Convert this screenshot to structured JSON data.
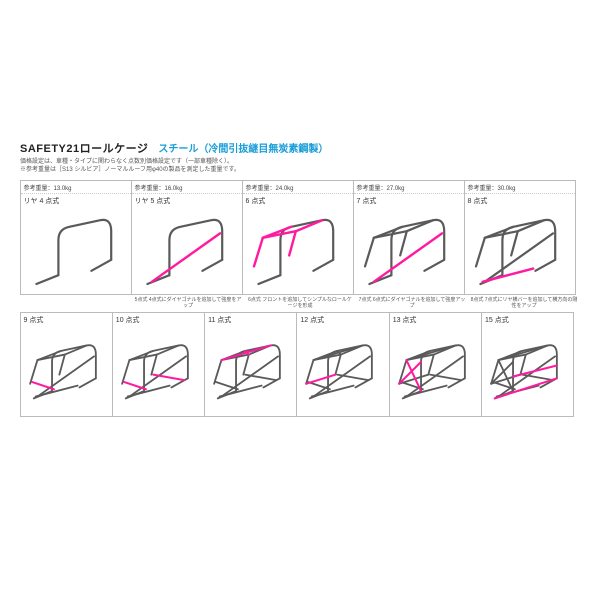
{
  "header": {
    "title_main": "SAFETY21ロールケージ",
    "title_sub": "スチール（冷間引抜継目無炭素鋼製）",
    "line1": "価格設定は、車種・タイプに関わらなく点数別価格設定です（一部車種除く）。",
    "line2": "※参考重量は［S13 シルビア］ノーマルルーフ用φ40の製品を測定した重量です。"
  },
  "colors": {
    "main_bar": "#5a5a5a",
    "accent_bar": "#ff1a9f",
    "border": "#bbbbbb",
    "accent_stroke_width": 2.2,
    "main_stroke_width": 2.0
  },
  "row1": [
    {
      "weight": "参考重量：13.0kg",
      "label": "リヤ 4 点式",
      "type": "rear4",
      "caption": ""
    },
    {
      "weight": "参考重量：16.0kg",
      "label": "リヤ 5 点式",
      "type": "rear5",
      "caption": "5点式 4点式にダイヤゴナルを追加して強度をアップ"
    },
    {
      "weight": "参考重量：24.0kg",
      "label": "6 点式",
      "type": "p6",
      "caption": "6点式 フロントを追加してシンプルなロールケージを形成"
    },
    {
      "weight": "参考重量：27.0kg",
      "label": "7 点式",
      "type": "p7",
      "caption": "7点式 6点式にダイヤゴナルを追加して強度アップ"
    },
    {
      "weight": "参考重量：30.0kg",
      "label": "8 点式",
      "type": "p8",
      "caption": "8点式 7点式にリヤ横バーを追加して横方向の剛性をアップ"
    }
  ],
  "row2": [
    {
      "label": "9 点式",
      "type": "p9"
    },
    {
      "label": "10 点式",
      "type": "p10"
    },
    {
      "label": "11 点式",
      "type": "p11"
    },
    {
      "label": "12 点式",
      "type": "p12"
    },
    {
      "label": "13 点式",
      "type": "p13"
    },
    {
      "label": "15 点式",
      "type": "p15"
    }
  ]
}
